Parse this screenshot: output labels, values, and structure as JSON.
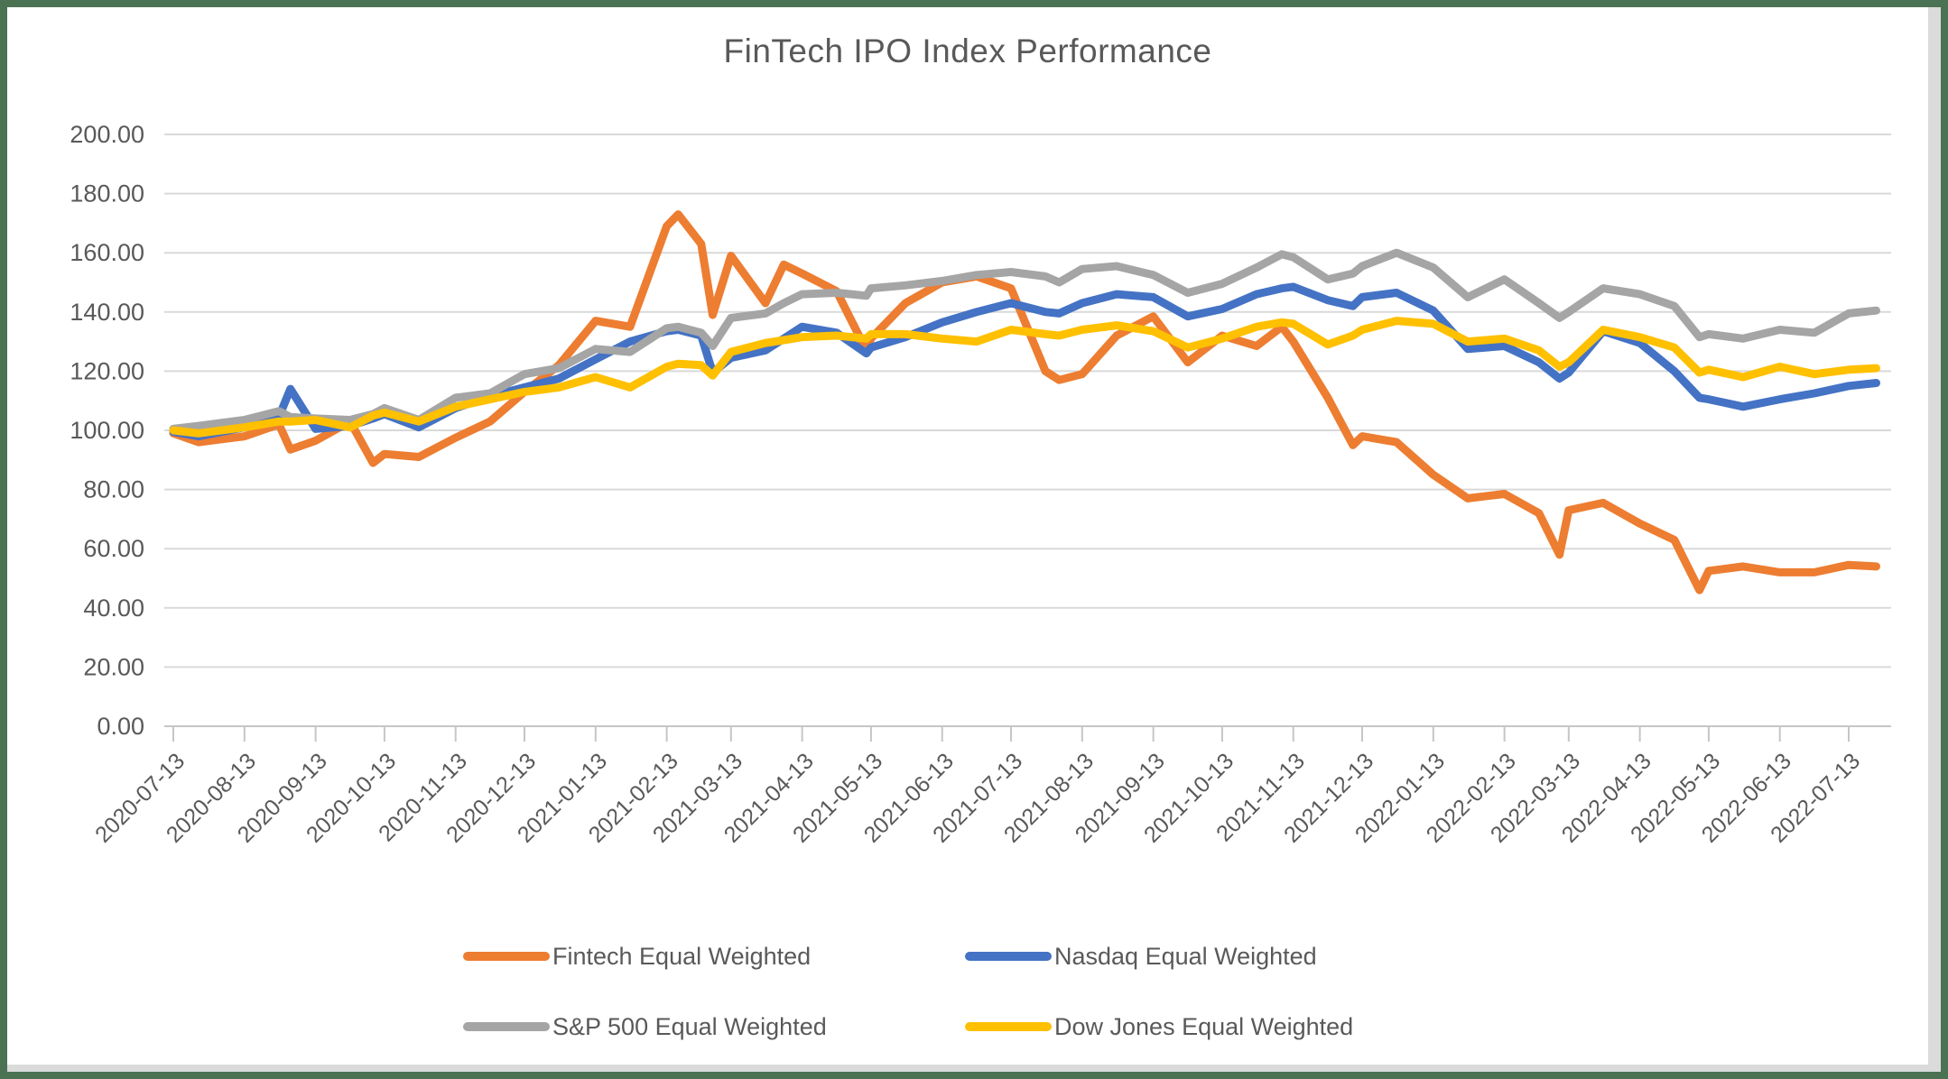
{
  "frame": {
    "border_color": "#4A7253",
    "canvas_color": "#FFFFFF",
    "shadow_color": "#DBDBDB"
  },
  "chart_data": {
    "type": "line",
    "title": "FinTech IPO Index Performance",
    "xlabel": "",
    "ylabel": "",
    "ylim": [
      0,
      200
    ],
    "grid": true,
    "legend_position": "bottom",
    "label_color": "#595959",
    "grid_color": "#D9D9D9",
    "axis_color": "#C6C6C6",
    "y_tick_labels": [
      "0.00",
      "20.00",
      "40.00",
      "60.00",
      "80.00",
      "100.00",
      "120.00",
      "140.00",
      "160.00",
      "180.00",
      "200.00"
    ],
    "x_tick_labels": [
      "2020-07-13",
      "2020-08-13",
      "2020-09-13",
      "2020-10-13",
      "2020-11-13",
      "2020-12-13",
      "2021-01-13",
      "2021-02-13",
      "2021-03-13",
      "2021-04-13",
      "2021-05-13",
      "2021-06-13",
      "2021-07-13",
      "2021-08-13",
      "2021-09-13",
      "2021-10-13",
      "2021-11-13",
      "2021-12-13",
      "2022-01-13",
      "2022-02-13",
      "2022-03-13",
      "2022-04-13",
      "2022-05-13",
      "2022-06-13",
      "2022-07-13"
    ],
    "x": [
      "2020-07-13",
      "2020-07-24",
      "2020-08-13",
      "2020-08-28",
      "2020-09-02",
      "2020-09-13",
      "2020-09-28",
      "2020-10-08",
      "2020-10-13",
      "2020-10-28",
      "2020-11-13",
      "2020-11-28",
      "2020-12-13",
      "2020-12-28",
      "2021-01-13",
      "2021-01-28",
      "2021-02-13",
      "2021-02-18",
      "2021-02-28",
      "2021-03-05",
      "2021-03-13",
      "2021-03-28",
      "2021-04-05",
      "2021-04-13",
      "2021-04-28",
      "2021-05-11",
      "2021-05-13",
      "2021-05-28",
      "2021-06-13",
      "2021-06-28",
      "2021-07-13",
      "2021-07-28",
      "2021-08-03",
      "2021-08-13",
      "2021-08-28",
      "2021-09-13",
      "2021-09-28",
      "2021-10-13",
      "2021-10-28",
      "2021-11-08",
      "2021-11-13",
      "2021-11-28",
      "2021-12-09",
      "2021-12-13",
      "2021-12-28",
      "2022-01-13",
      "2022-01-28",
      "2022-02-13",
      "2022-02-28",
      "2022-03-09",
      "2022-03-13",
      "2022-03-28",
      "2022-04-13",
      "2022-04-28",
      "2022-05-09",
      "2022-05-13",
      "2022-05-28",
      "2022-06-13",
      "2022-06-28",
      "2022-07-13",
      "2022-07-25"
    ],
    "series": [
      {
        "name": "Fintech Equal Weighted",
        "color": "#ED7D31",
        "values": [
          99,
          96,
          98,
          102,
          93.5,
          96.5,
          103,
          89,
          92,
          91,
          97.5,
          103,
          113,
          122,
          137,
          135,
          169,
          173,
          163,
          139,
          159,
          143,
          156,
          153,
          147,
          127,
          131,
          143,
          150,
          152,
          148,
          120,
          117,
          119,
          132,
          138.5,
          123,
          132,
          128.5,
          135,
          130,
          111,
          95,
          98,
          96,
          85,
          77,
          78.5,
          72,
          58,
          73,
          75.5,
          68.5,
          63,
          46,
          52.5,
          54,
          52,
          52,
          54.5,
          54
        ]
      },
      {
        "name": "Nasdaq Equal Weighted",
        "color": "#4472C4",
        "values": [
          99.5,
          98,
          101,
          104.5,
          114,
          100.5,
          101.5,
          104,
          105.5,
          101,
          107.5,
          111.5,
          114.5,
          117.5,
          124,
          130,
          133.5,
          134,
          132,
          119.5,
          124.5,
          127,
          131,
          135,
          133,
          126,
          128,
          131.5,
          136.5,
          140,
          143,
          140,
          139.5,
          143,
          146,
          145,
          138.5,
          141,
          146,
          148,
          148.5,
          144,
          142,
          145,
          146.5,
          140.5,
          127.5,
          128.5,
          123,
          117.5,
          119.5,
          133.5,
          129.5,
          120,
          111,
          110.5,
          108,
          110.5,
          112.5,
          115,
          116
        ]
      },
      {
        "name": "S&P 500 Equal Weighted",
        "color": "#A5A5A5",
        "values": [
          100.5,
          101.5,
          103.5,
          106.5,
          104.5,
          104,
          103.5,
          105.5,
          107.5,
          103.5,
          111,
          112.5,
          119,
          121,
          127.5,
          126.5,
          134.5,
          135,
          133,
          128.5,
          138,
          139.5,
          143,
          146,
          146.5,
          145.5,
          148,
          149,
          150.5,
          152.5,
          153.5,
          152,
          150,
          154.5,
          155.5,
          152.5,
          146.5,
          149.5,
          155,
          159.5,
          158.5,
          151,
          153,
          155.5,
          160,
          155,
          145,
          151,
          143,
          138,
          140,
          148,
          146,
          142,
          131.5,
          132.5,
          131,
          134,
          133,
          139.5,
          140.5
        ]
      },
      {
        "name": "Dow Jones Equal Weighted",
        "color": "#FFC000",
        "values": [
          100,
          99,
          101,
          103,
          103,
          103.5,
          101,
          105,
          106,
          103,
          108,
          110.5,
          113,
          114.5,
          118,
          114.5,
          121.5,
          122.5,
          122,
          118.5,
          126.5,
          129.5,
          130.5,
          131.5,
          132,
          131,
          132.5,
          132.5,
          131,
          130,
          134,
          132.5,
          132,
          134,
          135.5,
          133.5,
          128,
          131,
          135,
          136.5,
          136,
          129,
          132,
          134,
          137,
          136,
          130,
          131,
          127,
          121.5,
          123,
          134,
          131.5,
          128,
          119.5,
          120.5,
          118,
          121.5,
          119,
          120.5,
          121
        ]
      }
    ]
  }
}
